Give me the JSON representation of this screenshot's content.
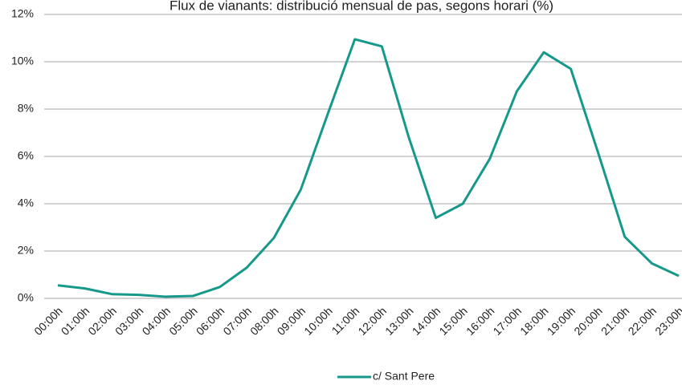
{
  "chart_data": {
    "type": "line",
    "title": "Flux de vianants: distribució mensual de pas, segons  horari (%)",
    "categories": [
      "00:00h",
      "01:00h",
      "02:00h",
      "03:00h",
      "04:00h",
      "05:00h",
      "06:00h",
      "07:00h",
      "08:00h",
      "09:00h",
      "10:00h",
      "11:00h",
      "12:00h",
      "13:00h",
      "14:00h",
      "15:00h",
      "16:00h",
      "17:00h",
      "18:00h",
      "19:00h",
      "20:00h",
      "21:00h",
      "22:00h",
      "23:00h"
    ],
    "series": [
      {
        "name": "c/ Sant Pere",
        "color": "#16998a",
        "values": [
          0.55,
          0.42,
          0.18,
          0.15,
          0.07,
          0.1,
          0.48,
          1.3,
          2.55,
          4.6,
          7.8,
          10.95,
          10.65,
          6.8,
          3.4,
          4.0,
          5.9,
          8.75,
          10.4,
          9.7,
          6.2,
          2.6,
          1.48,
          0.95
        ]
      }
    ],
    "ylim": [
      0,
      12
    ],
    "yticks": [
      {
        "value": 0,
        "label": "0%"
      },
      {
        "value": 2,
        "label": "2%"
      },
      {
        "value": 4,
        "label": "4%"
      },
      {
        "value": 6,
        "label": "6%"
      },
      {
        "value": 8,
        "label": "8%"
      },
      {
        "value": 10,
        "label": "10%"
      },
      {
        "value": 12,
        "label": "12%"
      }
    ],
    "grid": true,
    "legend": "bottom"
  }
}
